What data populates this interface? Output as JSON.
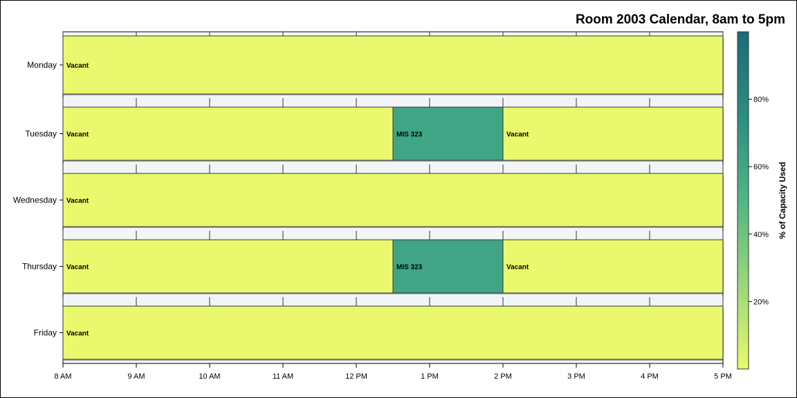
{
  "chart_data": {
    "type": "bar",
    "orientation": "horizontal",
    "title": "Room 2003 Calendar, 8am to 5pm",
    "categories": [
      "Monday",
      "Tuesday",
      "Wednesday",
      "Thursday",
      "Friday"
    ],
    "x_ticks": [
      "8 AM",
      "9 AM",
      "10 AM",
      "11 AM",
      "12 PM",
      "1 PM",
      "2 PM",
      "3 PM",
      "4 PM",
      "5 PM"
    ],
    "xlim": [
      8,
      17
    ],
    "segments": [
      {
        "day": "Monday",
        "start": 8,
        "end": 17,
        "label": "Vacant",
        "capacity": 0
      },
      {
        "day": "Tuesday",
        "start": 8,
        "end": 12.5,
        "label": "Vacant",
        "capacity": 0
      },
      {
        "day": "Tuesday",
        "start": 12.5,
        "end": 14,
        "label": "MIS 323",
        "capacity": 70
      },
      {
        "day": "Tuesday",
        "start": 14,
        "end": 17,
        "label": "Vacant",
        "capacity": 0
      },
      {
        "day": "Wednesday",
        "start": 8,
        "end": 17,
        "label": "Vacant",
        "capacity": 0
      },
      {
        "day": "Thursday",
        "start": 8,
        "end": 12.5,
        "label": "Vacant",
        "capacity": 0
      },
      {
        "day": "Thursday",
        "start": 12.5,
        "end": 14,
        "label": "MIS 323",
        "capacity": 70
      },
      {
        "day": "Thursday",
        "start": 14,
        "end": 17,
        "label": "Vacant",
        "capacity": 0
      },
      {
        "day": "Friday",
        "start": 8,
        "end": 17,
        "label": "Vacant",
        "capacity": 0
      }
    ],
    "colorbar": {
      "label": "% of Capacity Used",
      "range": [
        0,
        100
      ],
      "ticks": [
        20,
        40,
        60,
        80
      ],
      "tick_labels": [
        "20%",
        "40%",
        "60%",
        "80%"
      ],
      "colors": [
        "#eaf96d",
        "#9ad77a",
        "#4fb784",
        "#2c8e7f",
        "#1a6b78"
      ]
    },
    "colors": {
      "vacant": "#e9f86c",
      "occupied": "#3fa585",
      "grid_band": "#f1f5f8"
    },
    "grid": true
  }
}
